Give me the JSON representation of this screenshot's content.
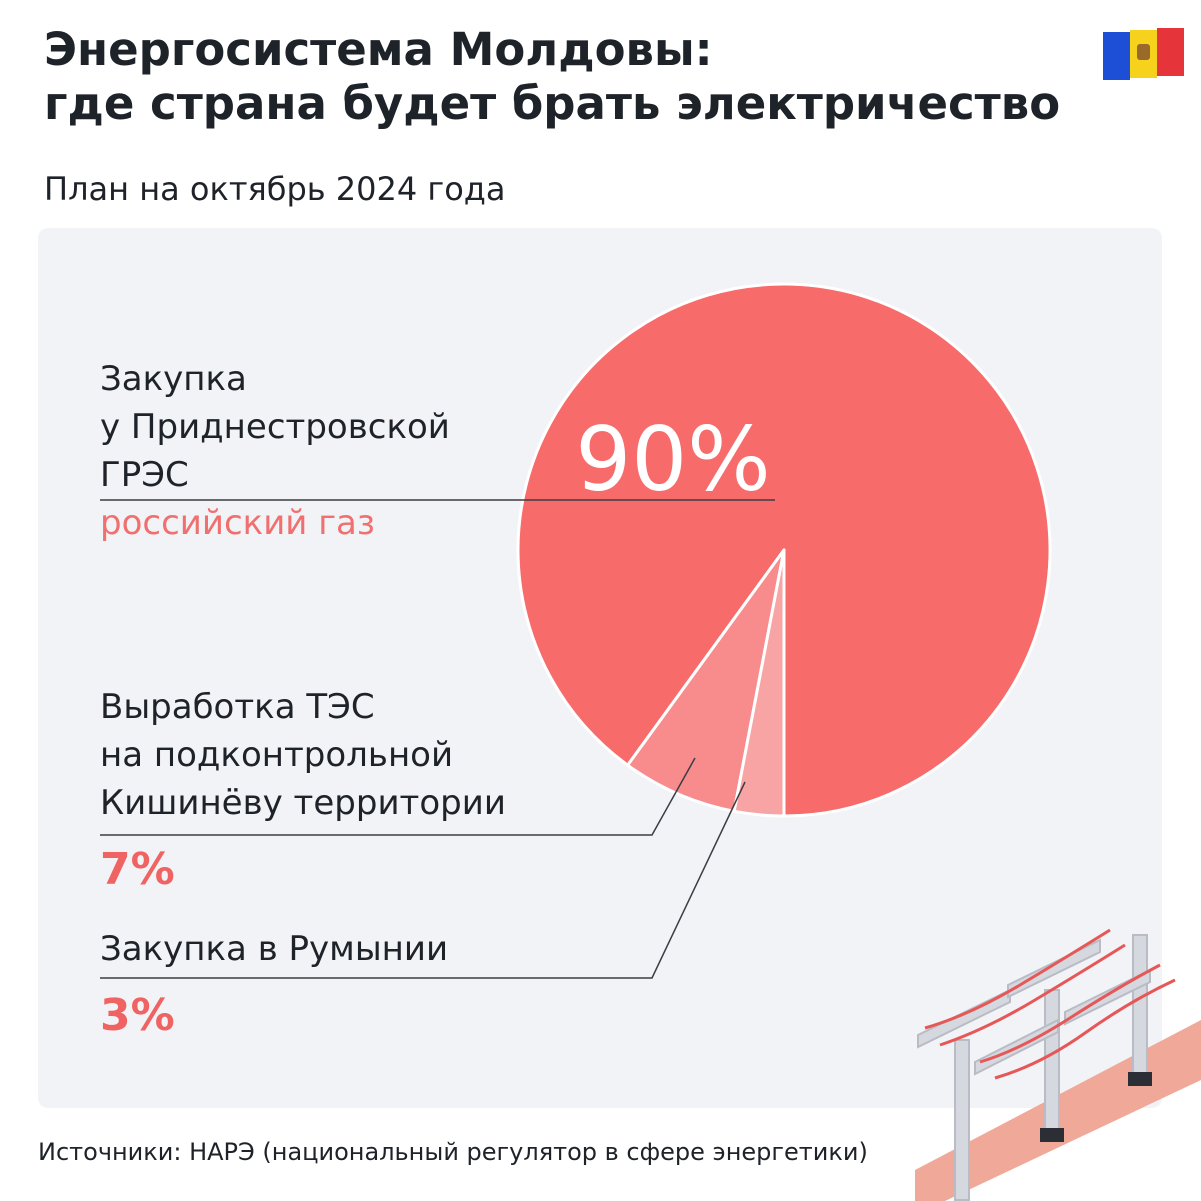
{
  "chart_data": {
    "type": "pie",
    "title": "Энергосистема Молдовы:\nгде страна будет брать электричество",
    "subtitle": "План на октябрь 2024 года",
    "categories": [
      "Закупка\nу Приднестровской\nГРЭС",
      "Выработка ТЭС\nна подконтрольной\nКишинёву территории",
      "Закупка в Румынии"
    ],
    "notes": [
      "российский газ"
    ],
    "values": [
      90,
      7,
      3
    ],
    "value_labels": [
      "90%",
      "7%",
      "3%"
    ],
    "colors": [
      "#f76b6b",
      "#f88b8b",
      "#f9a4a4"
    ],
    "source": "Источники: НАРЭ (национальный регулятор в сфере энергетики)"
  }
}
